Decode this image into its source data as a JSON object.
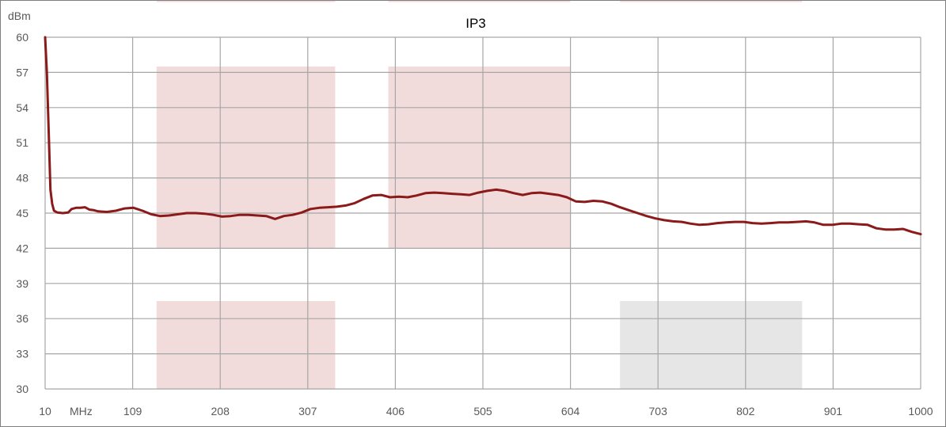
{
  "chart_data": {
    "type": "line",
    "title": "IP3",
    "ylabel": "dBm",
    "x_unit_label": "MHz",
    "xlim": [
      10,
      1000
    ],
    "ylim": [
      30,
      60
    ],
    "x_ticks": [
      10,
      109,
      208,
      307,
      406,
      505,
      604,
      703,
      802,
      901,
      1000
    ],
    "x_tick_labels": [
      "10",
      "109",
      "208",
      "307",
      "406",
      "505",
      "604",
      "703",
      "802",
      "901",
      "1000"
    ],
    "y_ticks": [
      30,
      33,
      36,
      39,
      42,
      45,
      48,
      51,
      54,
      57,
      60
    ],
    "y_tick_labels": [
      "30",
      "33",
      "36",
      "39",
      "42",
      "45",
      "48",
      "51",
      "54",
      "57",
      "60"
    ],
    "grid": true,
    "legend": "none",
    "colors": {
      "line": "#8B1A1A",
      "band_pink": "#F2DCDB",
      "band_gray": "#E6E6E6",
      "grid": "#A6A6A6",
      "frame": "#7F7F7F"
    },
    "bands": [
      {
        "x0": 136,
        "x1": 338,
        "y0": 42,
        "y1": 57.5,
        "color": "pink"
      },
      {
        "x0": 136,
        "x1": 338,
        "y0": 30,
        "y1": 37.5,
        "color": "pink"
      },
      {
        "x0": 136,
        "x1": 338,
        "y0": 63,
        "y1": 64.5,
        "color": "pink"
      },
      {
        "x0": 398,
        "x1": 604,
        "y0": 42,
        "y1": 57.5,
        "color": "pink"
      },
      {
        "x0": 398,
        "x1": 604,
        "y0": 63,
        "y1": 64.5,
        "color": "pink"
      },
      {
        "x0": 660,
        "x1": 866,
        "y0": 30,
        "y1": 37.5,
        "color": "gray"
      },
      {
        "x0": 660,
        "x1": 866,
        "y0": 63,
        "y1": 64.5,
        "color": "pink"
      }
    ],
    "series": [
      {
        "x": [
          10,
          12,
          14,
          16,
          18,
          20,
          24,
          30,
          36,
          40,
          45,
          50,
          55,
          60,
          65,
          70,
          80,
          90,
          100,
          110,
          120,
          130,
          140,
          150,
          160,
          170,
          180,
          190,
          200,
          210,
          220,
          230,
          240,
          250,
          260,
          270,
          280,
          290,
          300,
          310,
          320,
          330,
          340,
          350,
          360,
          370,
          380,
          390,
          400,
          410,
          420,
          430,
          440,
          450,
          460,
          470,
          480,
          490,
          500,
          510,
          520,
          530,
          540,
          550,
          560,
          570,
          580,
          590,
          600,
          610,
          620,
          630,
          640,
          650,
          660,
          670,
          680,
          690,
          700,
          710,
          720,
          730,
          740,
          750,
          760,
          770,
          780,
          790,
          800,
          810,
          820,
          830,
          840,
          850,
          860,
          870,
          880,
          890,
          900,
          910,
          920,
          930,
          940,
          950,
          960,
          970,
          980,
          990,
          1000
        ],
        "y": [
          60,
          57,
          52,
          47,
          45.8,
          45.2,
          45.05,
          45.0,
          45.05,
          45.35,
          45.45,
          45.45,
          45.5,
          45.3,
          45.25,
          45.15,
          45.1,
          45.2,
          45.4,
          45.45,
          45.2,
          44.9,
          44.75,
          44.8,
          44.9,
          45.0,
          45.0,
          44.95,
          44.85,
          44.7,
          44.75,
          44.85,
          44.85,
          44.8,
          44.75,
          44.5,
          44.75,
          44.85,
          45.05,
          45.35,
          45.45,
          45.5,
          45.55,
          45.65,
          45.85,
          46.2,
          46.5,
          46.55,
          46.35,
          46.4,
          46.35,
          46.5,
          46.7,
          46.75,
          46.7,
          46.65,
          46.6,
          46.55,
          46.75,
          46.9,
          47.0,
          46.9,
          46.7,
          46.55,
          46.7,
          46.75,
          46.65,
          46.55,
          46.35,
          46.0,
          45.95,
          46.05,
          46.0,
          45.8,
          45.5,
          45.25,
          45.0,
          44.75,
          44.55,
          44.4,
          44.3,
          44.25,
          44.1,
          44.0,
          44.05,
          44.15,
          44.2,
          44.25,
          44.25,
          44.15,
          44.1,
          44.15,
          44.2,
          44.2,
          44.25,
          44.3,
          44.2,
          44.0,
          44.0,
          44.1,
          44.1,
          44.05,
          44.0,
          43.7,
          43.6,
          43.6,
          43.65,
          43.4,
          43.2
        ]
      }
    ]
  }
}
